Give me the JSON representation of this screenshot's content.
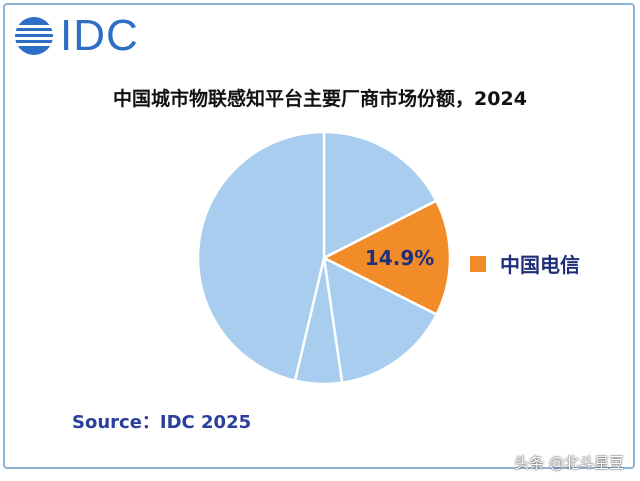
{
  "logo": {
    "text": "IDC",
    "color": "#2c6fc4"
  },
  "chart_data": {
    "type": "pie",
    "title": "中国城市物联感知平台主要厂商市场份额，2024",
    "slices": [
      {
        "name": "",
        "value": 17.5,
        "color": "#a8cdef"
      },
      {
        "name": "中国电信",
        "value": 14.9,
        "label": "14.9%",
        "color": "#f28c28"
      },
      {
        "name": "",
        "value": 15.3,
        "color": "#a8cdef"
      },
      {
        "name": "",
        "value": 6.0,
        "color": "#a8cdef"
      },
      {
        "name": "",
        "value": 46.3,
        "color": "#a8cdef"
      }
    ],
    "start_angle_deg": 0,
    "direction": "clockwise",
    "legend": {
      "entries": [
        "中国电信"
      ],
      "placement": "right"
    },
    "source": "Source：IDC 2025"
  },
  "watermark": "头条 @北斗星豆"
}
